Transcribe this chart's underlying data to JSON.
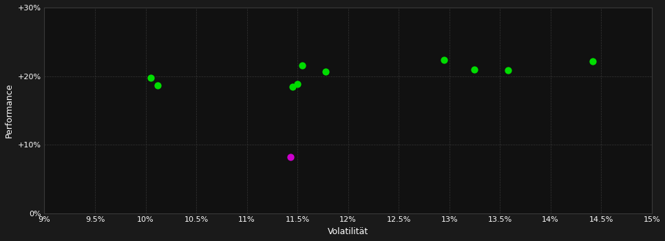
{
  "background_color": "#1a1a1a",
  "plot_bg_color": "#111111",
  "grid_color": "#3a3a3a",
  "text_color": "#ffffff",
  "xlabel": "Volatilität",
  "ylabel": "Performance",
  "xlim": [
    0.09,
    0.15
  ],
  "ylim": [
    0.0,
    0.3
  ],
  "xticks": [
    0.09,
    0.095,
    0.1,
    0.105,
    0.11,
    0.115,
    0.12,
    0.125,
    0.13,
    0.135,
    0.14,
    0.145,
    0.15
  ],
  "xtick_labels": [
    "9%",
    "9.5%",
    "10%",
    "10.5%",
    "11%",
    "11.5%",
    "12%",
    "12.5%",
    "13%",
    "13.5%",
    "14%",
    "14.5%",
    "15%"
  ],
  "yticks": [
    0.0,
    0.1,
    0.2,
    0.3
  ],
  "ytick_labels": [
    "0%",
    "+10%",
    "+20%",
    "+30%"
  ],
  "green_points": [
    [
      0.1005,
      0.198
    ],
    [
      0.1012,
      0.186
    ],
    [
      0.1145,
      0.184
    ],
    [
      0.115,
      0.188
    ],
    [
      0.1155,
      0.216
    ],
    [
      0.1178,
      0.207
    ],
    [
      0.1295,
      0.224
    ],
    [
      0.1325,
      0.21
    ],
    [
      0.1358,
      0.209
    ],
    [
      0.1442,
      0.222
    ]
  ],
  "magenta_points": [
    [
      0.1143,
      0.082
    ]
  ],
  "green_color": "#00dd00",
  "magenta_color": "#cc00cc",
  "marker_size": 55,
  "figsize": [
    9.66,
    3.5
  ],
  "dpi": 100
}
